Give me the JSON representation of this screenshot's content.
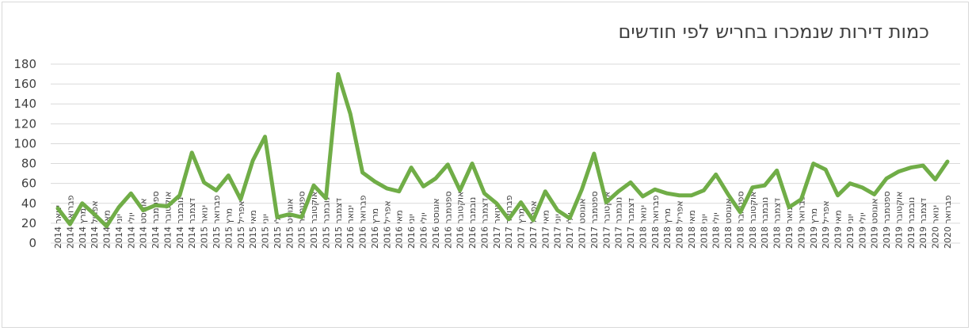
{
  "title": "כמות דירות שנמכרו בחריש לפי חודשים",
  "chart_data": {
    "type": "line",
    "title": "כמות דירות שנמכרו בחריש לפי חודשים",
    "xlabel": "",
    "ylabel": "",
    "ylim": [
      0,
      180
    ],
    "yticks": [
      0,
      20,
      40,
      60,
      80,
      100,
      120,
      140,
      160,
      180
    ],
    "grid": "horizontal",
    "legend": "none",
    "line_color": "#70AD47",
    "grid_color": "#D9D9D9",
    "categories": [
      "ינואר 2014",
      "פברואר 2014",
      "מרץ 2014",
      "אפריל 2014",
      "מאי 2014",
      "יוני 2014",
      "יולי 2014",
      "אוגוסט 2014",
      "ספטמבר 2014",
      "אוקטובר 2014",
      "נובמבר 2014",
      "דצמבר 2014",
      "ינואר 2015",
      "פברואר 2015",
      "מרץ 2015",
      "אפריל 2015",
      "מאי 2015",
      "יוני 2015",
      "יולי 2015",
      "אוגוסט 2015",
      "ספטמבר 2015",
      "אוקטובר 2015",
      "נובמבר 2015",
      "דצמבר 2015",
      "ינואר 2016",
      "פברואר 2016",
      "מרץ 2016",
      "אפריל 2016",
      "מאי 2016",
      "יוני 2016",
      "יולי 2016",
      "אוגוסט 2016",
      "ספטמבר 2016",
      "אוקטובר 2016",
      "נובמבר 2016",
      "דצמבר 2016",
      "ינואר 2017",
      "פברואר 2017",
      "מרץ 2017",
      "אפריל 2017",
      "מאי 2017",
      "יוני 2017",
      "יולי 2017",
      "אוגוסט 2017",
      "ספטמבר 2017",
      "אוקטובר 2017",
      "נובמבר 2017",
      "דצמבר 2017",
      "ינואר 2018",
      "פברואר 2018",
      "מרץ 2018",
      "אפריל 2018",
      "מאי 2018",
      "יוני 2018",
      "יולי 2018",
      "אוגוסט 2018",
      "ספטמבר 2018",
      "אוקטובר 2018",
      "נובמבר 2018",
      "דצמבר 2018",
      "ינואר 2019",
      "פברואר 2019",
      "מרץ 2019",
      "אפריל 2019",
      "מאי 2019",
      "יוני 2019",
      "יולי 2019",
      "אוגוסט 2019",
      "ספטמבר 2019",
      "אוקטובר 2019",
      "נובמבר 2019",
      "דצמבר 2019",
      "ינואר 2020",
      "פברואר 2020"
    ],
    "values": [
      35,
      19,
      40,
      29,
      17,
      36,
      50,
      33,
      38,
      37,
      48,
      91,
      61,
      53,
      68,
      44,
      83,
      107,
      26,
      29,
      26,
      58,
      45,
      170,
      130,
      71,
      62,
      55,
      52,
      76,
      57,
      65,
      79,
      53,
      80,
      50,
      40,
      24,
      41,
      23,
      52,
      33,
      25,
      54,
      90,
      41,
      52,
      61,
      47,
      54,
      50,
      48,
      48,
      53,
      69,
      49,
      31,
      56,
      58,
      73,
      36,
      44,
      80,
      74,
      48,
      60,
      56,
      49,
      65,
      72,
      76,
      78,
      64,
      82
    ]
  }
}
